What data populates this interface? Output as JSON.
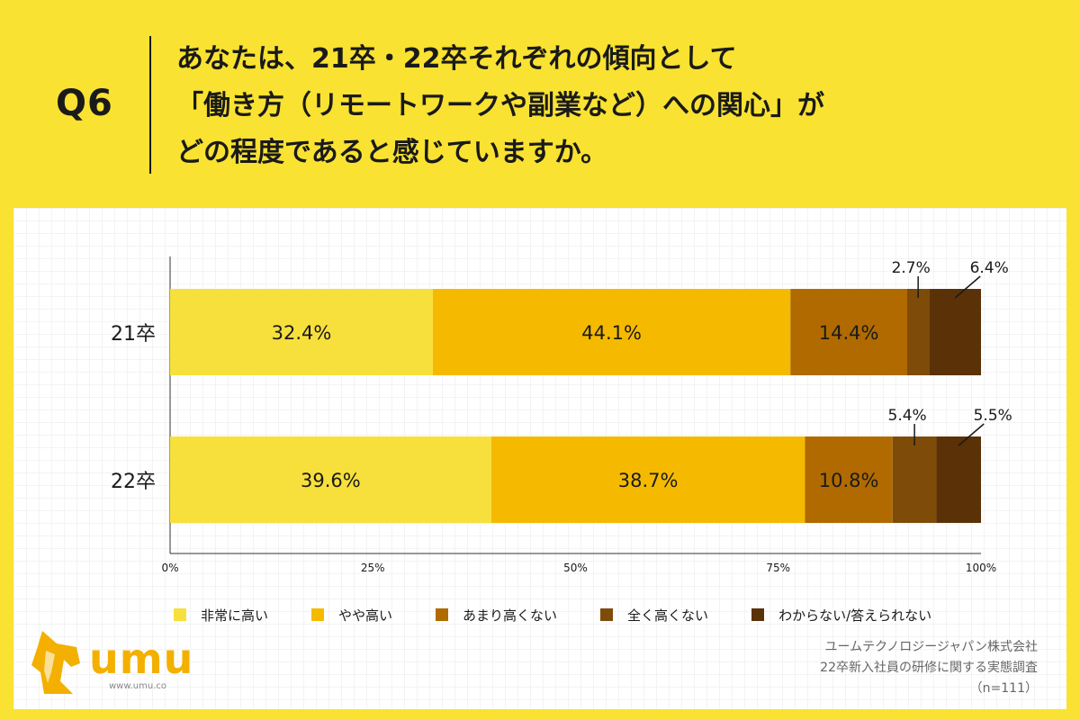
{
  "header": {
    "q_label": "Q6",
    "question_lines": [
      "あなたは、21卒・22卒それぞれの傾向として",
      "「働き方（リモートワークや副業など）への関心」が",
      "どの程度であると感じていますか。"
    ]
  },
  "chart_data": {
    "type": "bar",
    "orientation": "horizontal",
    "stacked": true,
    "categories": [
      "21卒",
      "22卒"
    ],
    "series": [
      {
        "name": "非常に高い",
        "color": "#f7e03c",
        "values": [
          32.4,
          39.6
        ]
      },
      {
        "name": "やや高い",
        "color": "#f5ba00",
        "values": [
          44.1,
          38.7
        ]
      },
      {
        "name": "あまり高くない",
        "color": "#b06a00",
        "values": [
          14.4,
          10.8
        ]
      },
      {
        "name": "全く高くない",
        "color": "#7e4b08",
        "values": [
          2.7,
          5.4
        ]
      },
      {
        "name": "わからない/答えられない",
        "color": "#5b3108",
        "values": [
          6.4,
          5.5
        ]
      }
    ],
    "value_labels": [
      [
        "32.4%",
        "44.1%",
        "14.4%",
        "2.7%",
        "6.4%"
      ],
      [
        "39.6%",
        "38.7%",
        "10.8%",
        "5.4%",
        "5.5%"
      ]
    ],
    "xlim": [
      0,
      100
    ],
    "x_ticks": [
      "0%",
      "25%",
      "50%",
      "75%",
      "100%"
    ],
    "legend_position": "bottom"
  },
  "brand": {
    "logo_text": "umu",
    "url": "www.umu.co"
  },
  "source": {
    "lines": [
      "ユームテクノロジージャパン株式会社",
      "22卒新入社員の研修に関する実態調査",
      "（n=111）"
    ]
  }
}
